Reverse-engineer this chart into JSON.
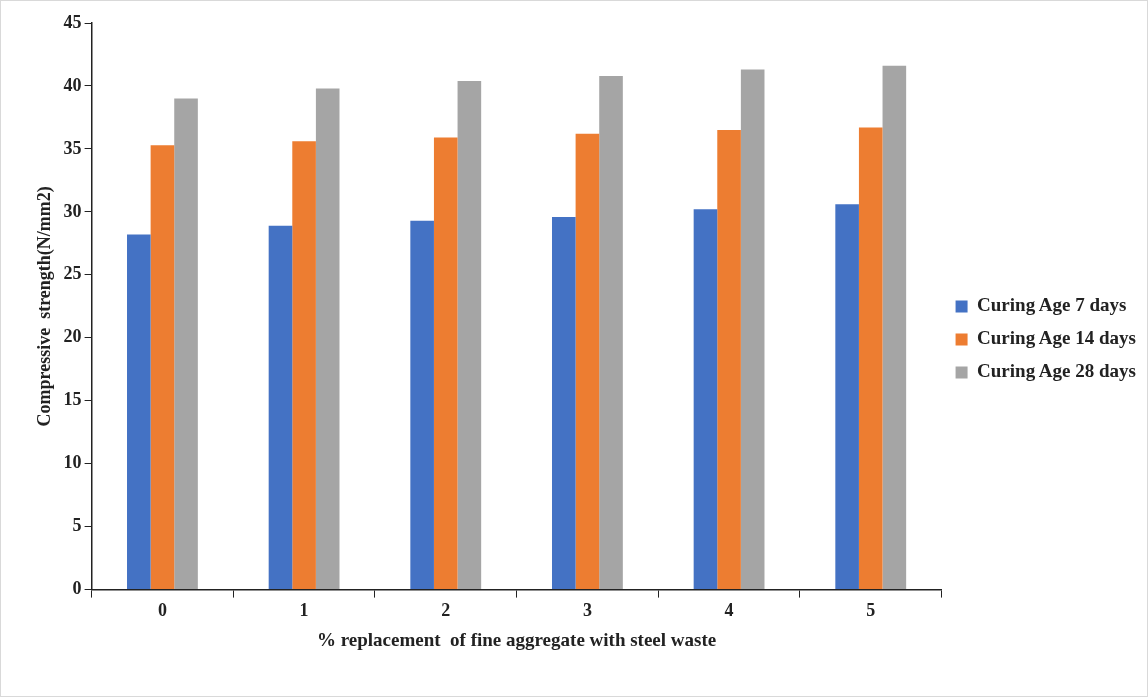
{
  "chart_data": {
    "type": "bar",
    "xlabel": "% replacement  of fine aggregate with steel waste",
    "ylabel": "Compressive  strength(N/mm2)",
    "categories": [
      "0",
      "1",
      "2",
      "3",
      "4",
      "5"
    ],
    "series": [
      {
        "name": "Curing Age 7 days",
        "color": "#4472c4",
        "values": [
          28.2,
          28.9,
          29.3,
          29.6,
          30.2,
          30.6
        ]
      },
      {
        "name": "Curing Age 14 days",
        "color": "#ed7d31",
        "values": [
          35.3,
          35.6,
          35.9,
          36.2,
          36.5,
          36.7
        ]
      },
      {
        "name": "Curing Age 28 days",
        "color": "#a5a5a5",
        "values": [
          39.0,
          39.8,
          40.4,
          40.8,
          41.3,
          41.6
        ]
      }
    ],
    "ylim": [
      0,
      45
    ],
    "yticks": [
      0,
      5,
      10,
      15,
      20,
      25,
      30,
      35,
      40,
      45
    ],
    "grid": false,
    "legend": "right"
  }
}
